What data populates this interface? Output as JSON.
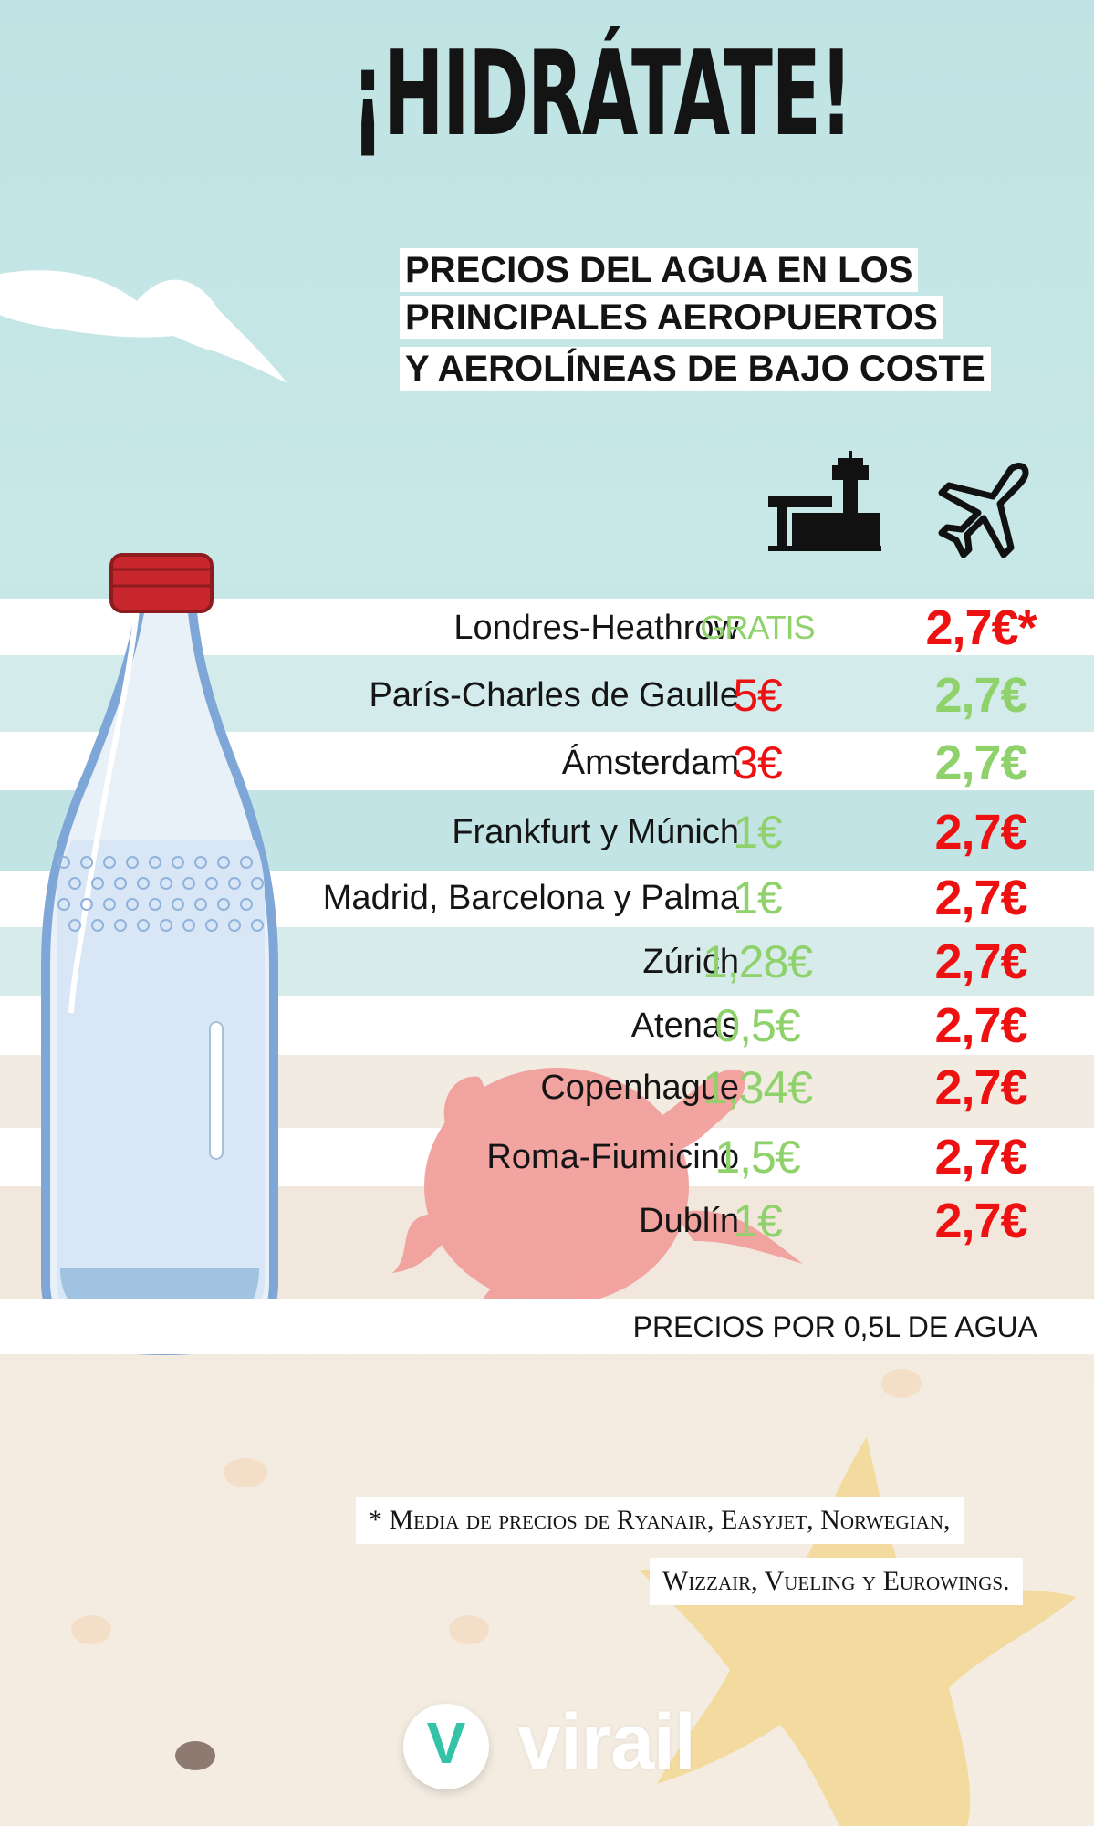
{
  "title": "¡HIDRÁTATE!",
  "subtitle": [
    "PRECIOS DEL AGUA EN LOS",
    "PRINCIPALES AEROPUERTOS",
    "Y AEROLÍNEAS DE BAJO COSTE"
  ],
  "icons": {
    "airport": "airport-terminal-icon",
    "airline": "airplane-icon"
  },
  "colors": {
    "cheap": "#8fd16a",
    "expensive": "#ee1111",
    "sky": "#bfe3e4",
    "sand": "#f4ece1"
  },
  "rows": [
    {
      "name": "Londres-Heathrow",
      "airport": "GRATIS",
      "airport_color": "green",
      "airline": "2,7€*",
      "airline_color": "red"
    },
    {
      "name": "París-Charles de Gaulle",
      "airport": "5€",
      "airport_color": "red",
      "airline": "2,7€",
      "airline_color": "green"
    },
    {
      "name": "Ámsterdam",
      "airport": "3€",
      "airport_color": "red",
      "airline": "2,7€",
      "airline_color": "green"
    },
    {
      "name": "Frankfurt y Múnich",
      "airport": "1€",
      "airport_color": "green",
      "airline": "2,7€",
      "airline_color": "red"
    },
    {
      "name": "Madrid, Barcelona y Palma",
      "airport": "1€",
      "airport_color": "green",
      "airline": "2,7€",
      "airline_color": "red"
    },
    {
      "name": "Zúrich",
      "airport": "1,28€",
      "airport_color": "green",
      "airline": "2,7€",
      "airline_color": "red"
    },
    {
      "name": "Atenas",
      "airport": "0,5€",
      "airport_color": "green",
      "airline": "2,7€",
      "airline_color": "red"
    },
    {
      "name": "Copenhague",
      "airport": "1,34€",
      "airport_color": "green",
      "airline": "2,7€",
      "airline_color": "red"
    },
    {
      "name": "Roma-Fiumicino",
      "airport": "1,5€",
      "airport_color": "green",
      "airline": "2,7€",
      "airline_color": "red"
    },
    {
      "name": "Dublín",
      "airport": "1€",
      "airport_color": "green",
      "airline": "2,7€",
      "airline_color": "red"
    }
  ],
  "footer": "PRECIOS POR 0,5L DE AGUA",
  "note": [
    "* Media de precios de Ryanair, Easyjet, Norwegian,",
    "Wizzair, Vueling y Eurowings."
  ],
  "brand": {
    "letter": "V",
    "name": "virail"
  }
}
